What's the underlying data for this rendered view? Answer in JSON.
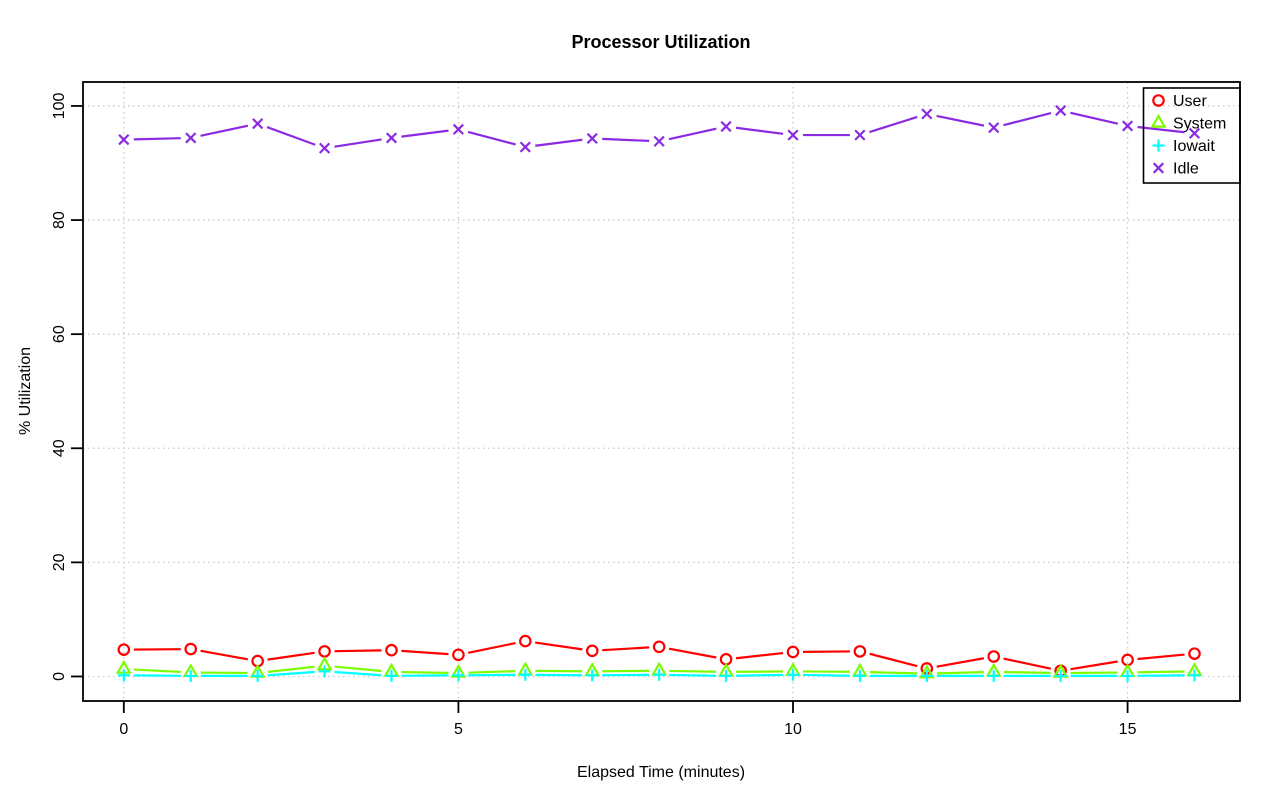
{
  "page": {
    "background": "#ffffff"
  },
  "chart_data": {
    "type": "line",
    "title": "Processor Utilization",
    "xlabel": "Elapsed Time (minutes)",
    "ylabel": "% Utilization",
    "x": [
      0,
      1,
      2,
      3,
      4,
      5,
      6,
      7,
      8,
      9,
      10,
      11,
      12,
      13,
      14,
      15,
      16
    ],
    "series": [
      {
        "name": "User",
        "color": "#ff0000",
        "marker": "circle",
        "values": [
          4.7,
          4.8,
          2.7,
          4.4,
          4.6,
          3.8,
          6.2,
          4.5,
          5.2,
          3.0,
          4.3,
          4.4,
          1.4,
          3.5,
          1.0,
          2.9,
          4.0
        ]
      },
      {
        "name": "System",
        "color": "#7cfc00",
        "marker": "triangle",
        "values": [
          1.3,
          0.7,
          0.6,
          1.9,
          0.8,
          0.6,
          1.0,
          0.9,
          1.0,
          0.8,
          0.9,
          0.8,
          0.5,
          0.8,
          0.6,
          0.7,
          0.9
        ]
      },
      {
        "name": "Iowait",
        "color": "#00ffff",
        "marker": "plus",
        "values": [
          0.2,
          0.1,
          0.1,
          0.9,
          0.1,
          0.2,
          0.3,
          0.2,
          0.3,
          0.1,
          0.3,
          0.1,
          0.1,
          0.1,
          0.1,
          0.1,
          0.2
        ]
      },
      {
        "name": "Idle",
        "color": "#8a2be2",
        "marker": "x",
        "values": [
          94.1,
          94.4,
          96.9,
          92.6,
          94.4,
          95.9,
          92.8,
          94.3,
          93.8,
          96.4,
          94.9,
          94.9,
          98.6,
          96.2,
          99.2,
          96.5,
          95.2
        ]
      }
    ],
    "xticks": [
      0,
      5,
      10,
      15
    ],
    "yticks": [
      0,
      20,
      40,
      60,
      80,
      100
    ],
    "xlim": [
      -0.61,
      16.68
    ],
    "ylim": [
      -4.3,
      104.2
    ],
    "grid": true,
    "grid_color": "#c8c8c8",
    "axis_color": "#000000",
    "legend_position": "top-right",
    "legend_transparent": true
  }
}
